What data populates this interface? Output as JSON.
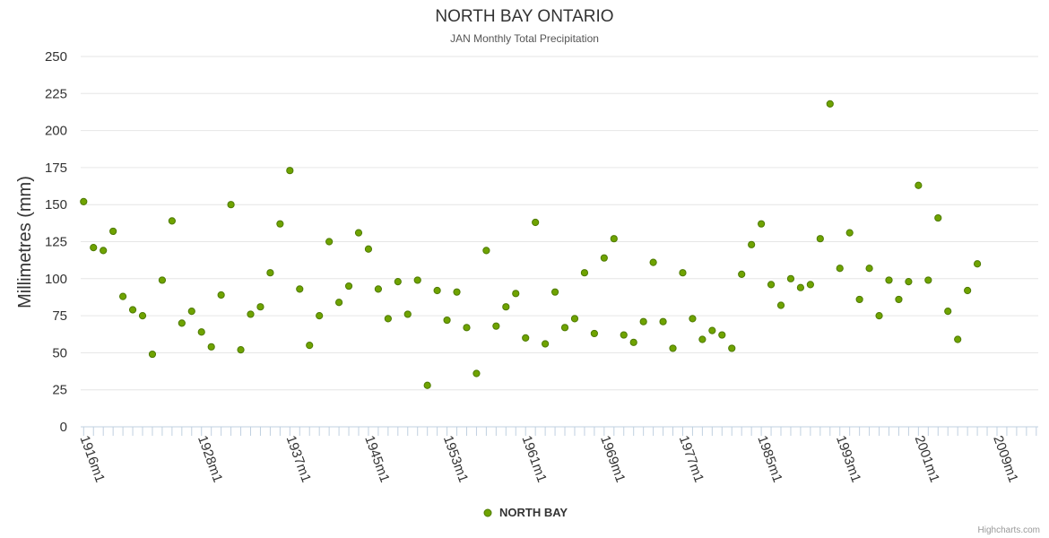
{
  "chart_data": {
    "type": "scatter",
    "title": "NORTH BAY ONTARIO",
    "subtitle": "JAN Monthly Total Precipitation",
    "xlabel": "",
    "ylabel": "Millimetres (mm)",
    "ylim": [
      0,
      250
    ],
    "yticks": [
      0,
      25,
      50,
      75,
      100,
      125,
      150,
      175,
      200,
      225,
      250
    ],
    "x_start_year": 1916,
    "x_end_year": 2013,
    "x_tick_labels": [
      {
        "year": 1916,
        "label": "1916m1"
      },
      {
        "year": 1928,
        "label": "1928m1"
      },
      {
        "year": 1937,
        "label": "1937m1"
      },
      {
        "year": 1945,
        "label": "1945m1"
      },
      {
        "year": 1953,
        "label": "1953m1"
      },
      {
        "year": 1961,
        "label": "1961m1"
      },
      {
        "year": 1969,
        "label": "1969m1"
      },
      {
        "year": 1977,
        "label": "1977m1"
      },
      {
        "year": 1985,
        "label": "1985m1"
      },
      {
        "year": 1993,
        "label": "1993m1"
      },
      {
        "year": 2001,
        "label": "2001m1"
      },
      {
        "year": 2009,
        "label": "2009m1"
      }
    ],
    "grid": true,
    "legend_position": "bottom-center",
    "series": [
      {
        "name": "NORTH BAY",
        "color": "#6fa300",
        "stroke": "#4d7a00",
        "points": [
          [
            1916,
            152
          ],
          [
            1917,
            121
          ],
          [
            1918,
            119
          ],
          [
            1919,
            132
          ],
          [
            1920,
            88
          ],
          [
            1921,
            79
          ],
          [
            1922,
            75
          ],
          [
            1923,
            49
          ],
          [
            1924,
            99
          ],
          [
            1925,
            139
          ],
          [
            1926,
            70
          ],
          [
            1927,
            78
          ],
          [
            1928,
            64
          ],
          [
            1929,
            54
          ],
          [
            1930,
            89
          ],
          [
            1931,
            150
          ],
          [
            1932,
            52
          ],
          [
            1933,
            76
          ],
          [
            1934,
            81
          ],
          [
            1935,
            104
          ],
          [
            1936,
            137
          ],
          [
            1937,
            173
          ],
          [
            1938,
            93
          ],
          [
            1939,
            55
          ],
          [
            1940,
            75
          ],
          [
            1941,
            125
          ],
          [
            1942,
            84
          ],
          [
            1943,
            95
          ],
          [
            1944,
            131
          ],
          [
            1945,
            120
          ],
          [
            1946,
            93
          ],
          [
            1947,
            73
          ],
          [
            1948,
            98
          ],
          [
            1949,
            76
          ],
          [
            1950,
            99
          ],
          [
            1951,
            28
          ],
          [
            1952,
            92
          ],
          [
            1953,
            72
          ],
          [
            1954,
            91
          ],
          [
            1955,
            67
          ],
          [
            1956,
            36
          ],
          [
            1957,
            119
          ],
          [
            1958,
            68
          ],
          [
            1959,
            81
          ],
          [
            1960,
            90
          ],
          [
            1961,
            60
          ],
          [
            1962,
            138
          ],
          [
            1963,
            56
          ],
          [
            1964,
            91
          ],
          [
            1965,
            67
          ],
          [
            1966,
            73
          ],
          [
            1967,
            104
          ],
          [
            1968,
            63
          ],
          [
            1969,
            114
          ],
          [
            1970,
            127
          ],
          [
            1971,
            62
          ],
          [
            1972,
            57
          ],
          [
            1973,
            71
          ],
          [
            1974,
            111
          ],
          [
            1975,
            71
          ],
          [
            1976,
            53
          ],
          [
            1977,
            104
          ],
          [
            1978,
            73
          ],
          [
            1979,
            59
          ],
          [
            1980,
            65
          ],
          [
            1981,
            62
          ],
          [
            1982,
            53
          ],
          [
            1983,
            103
          ],
          [
            1984,
            123
          ],
          [
            1985,
            137
          ],
          [
            1986,
            96
          ],
          [
            1987,
            82
          ],
          [
            1988,
            100
          ],
          [
            1989,
            94
          ],
          [
            1990,
            96
          ],
          [
            1991,
            127
          ],
          [
            1992,
            218
          ],
          [
            1993,
            107
          ],
          [
            1994,
            131
          ],
          [
            1995,
            86
          ],
          [
            1996,
            107
          ],
          [
            1997,
            75
          ],
          [
            1998,
            99
          ],
          [
            1999,
            86
          ],
          [
            2000,
            98
          ],
          [
            2001,
            163
          ],
          [
            2002,
            99
          ],
          [
            2003,
            141
          ],
          [
            2004,
            78
          ],
          [
            2005,
            59
          ],
          [
            2006,
            92
          ],
          [
            2007,
            110
          ]
        ]
      }
    ],
    "credits": "Highcharts.com"
  }
}
